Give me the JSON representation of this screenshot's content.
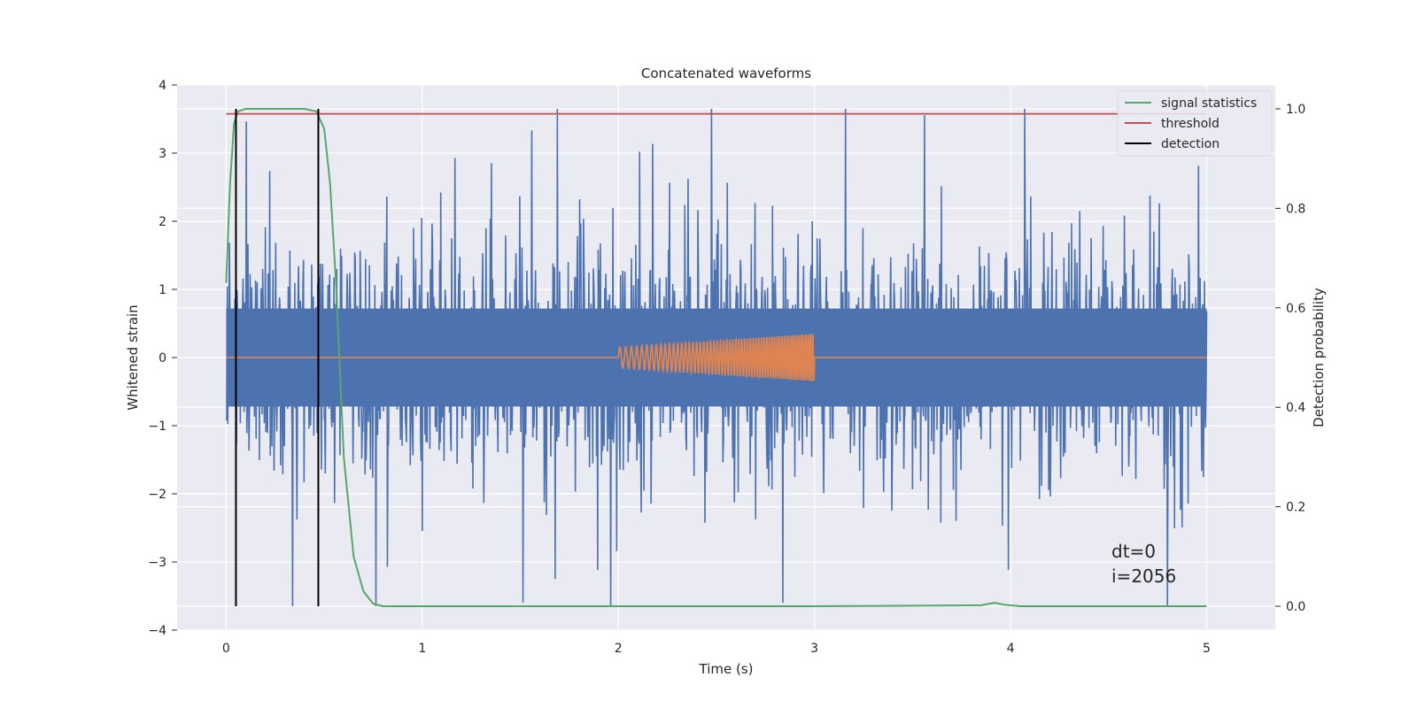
{
  "chart_data": {
    "type": "line",
    "title": "Concatenated waveforms",
    "xlabel": "Time (s)",
    "ylabel": "Whitened strain",
    "y2label": "Detection probability",
    "xlim": [
      -0.25,
      5.35
    ],
    "ylim": [
      -4,
      4
    ],
    "y2lim": [
      -0.048,
      1.048
    ],
    "xticks": [
      0,
      1,
      2,
      3,
      4,
      5
    ],
    "xtick_labels": [
      "0",
      "1",
      "2",
      "3",
      "4",
      "5"
    ],
    "yticks": [
      4,
      3,
      2,
      1,
      0,
      -1,
      -2,
      -3,
      -4
    ],
    "ytick_labels": [
      "4",
      "3",
      "2",
      "1",
      "0",
      "−1",
      "−2",
      "−3",
      "−4"
    ],
    "y2ticks": [
      1.0,
      0.8,
      0.6,
      0.4,
      0.2,
      0.0
    ],
    "y2tick_labels": [
      "1.0",
      "0.8",
      "0.6",
      "0.4",
      "0.2",
      "0.0"
    ],
    "grid": true,
    "legend_position": "top-right",
    "annotations": [
      "dt=0",
      "i=2056"
    ],
    "colors": {
      "background": "#eaeaf2",
      "grid": "#ffffff",
      "noise": "#4c72b0",
      "signal": "#dd8452",
      "statistics": "#55a868",
      "threshold": "#c44e52",
      "detection": "#000000"
    },
    "series": [
      {
        "name": "",
        "axis": "left",
        "description": "whitened noisy strain, Gaussian-like noise over 0 to 5 s, typical amplitude about ±1.2, spikes up to about ±3.6",
        "x_range": [
          0,
          5
        ],
        "amplitude_typical": 1.2,
        "amplitude_peak": 3.65
      },
      {
        "name": "",
        "axis": "left",
        "description": "injected chirp signal, zero outside 2 to 3 s, rising frequency and amplitude inside",
        "x_range": [
          0,
          5
        ],
        "chirp_start": 2.0,
        "chirp_end": 3.0,
        "amplitude_start": 0.15,
        "amplitude_end": 0.35
      },
      {
        "name": "signal statistics",
        "axis": "right",
        "x": [
          0,
          0.02,
          0.04,
          0.06,
          0.1,
          0.2,
          0.3,
          0.4,
          0.46,
          0.5,
          0.53,
          0.56,
          0.6,
          0.65,
          0.7,
          0.75,
          0.8,
          1,
          2,
          3,
          3.85,
          3.92,
          3.97,
          4.05,
          5
        ],
        "values": [
          0.65,
          0.85,
          0.97,
          0.995,
          1.0,
          1.0,
          1.0,
          1.0,
          0.995,
          0.96,
          0.85,
          0.65,
          0.3,
          0.1,
          0.03,
          0.005,
          0.0,
          0.0,
          0.0,
          0.0,
          0.002,
          0.007,
          0.003,
          0.0,
          0.0
        ]
      },
      {
        "name": "threshold",
        "axis": "right",
        "x": [
          0,
          5
        ],
        "values": [
          0.99,
          0.99
        ]
      },
      {
        "name": "detection",
        "axis": "right",
        "type": "vlines",
        "x": [
          0.05,
          0.47
        ],
        "y_from": 0.0,
        "y_to": 1.0
      }
    ]
  }
}
